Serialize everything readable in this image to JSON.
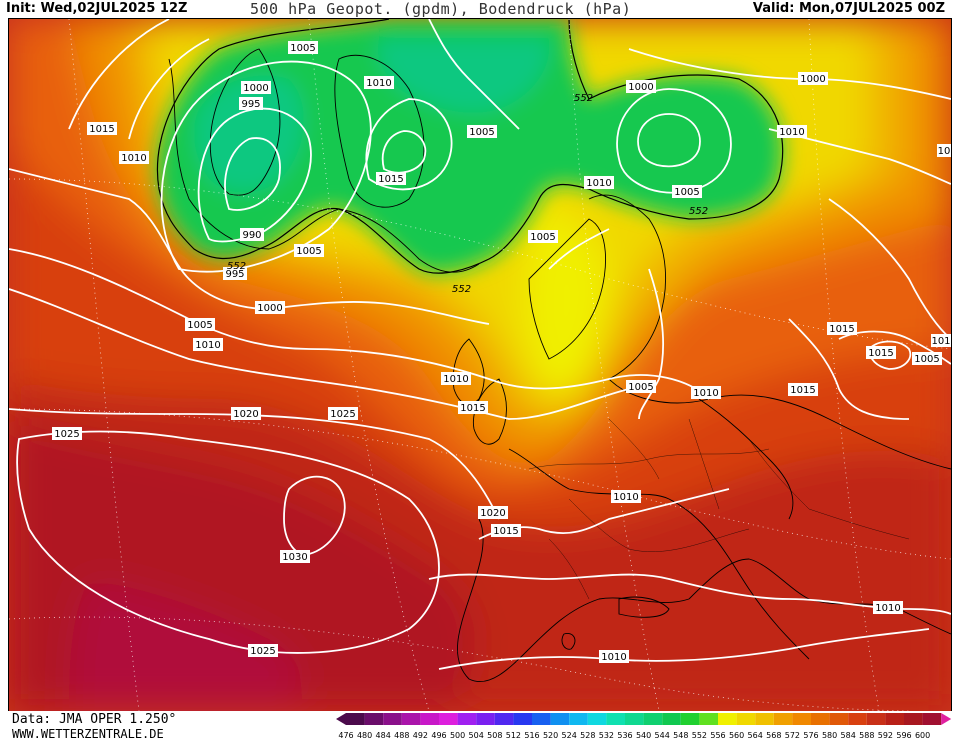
{
  "header": {
    "init": "Init: Wed,02JUL2025 12Z",
    "title": "500 hPa Geopot. (gpdm), Bodendruck (hPa)",
    "valid": "Valid: Mon,07JUL2025 00Z"
  },
  "footer": {
    "data_source": "Data: JMA OPER 1.250°",
    "url": "WWW.WETTERZENTRALE.DE"
  },
  "legend": {
    "values": [
      "476",
      "480",
      "484",
      "488",
      "492",
      "496",
      "500",
      "504",
      "508",
      "512",
      "516",
      "520",
      "524",
      "528",
      "532",
      "536",
      "540",
      "544",
      "548",
      "552",
      "556",
      "560",
      "564",
      "568",
      "572",
      "576",
      "580",
      "584",
      "588",
      "592",
      "596",
      "600"
    ],
    "colors": [
      "#4b0a4b",
      "#6a0d6a",
      "#8a108a",
      "#aa14aa",
      "#c818c8",
      "#dd1fdd",
      "#a020f0",
      "#7a20f0",
      "#5028f0",
      "#2838f0",
      "#1860f0",
      "#1090f0",
      "#10b8f0",
      "#10d8e0",
      "#10e0b0",
      "#10d890",
      "#10d070",
      "#10c850",
      "#20d030",
      "#60e020",
      "#f0f000",
      "#f0d800",
      "#f0c000",
      "#f0a000",
      "#f08800",
      "#e87000",
      "#e05808",
      "#d84010",
      "#c83018",
      "#b82018",
      "#a81820",
      "#a01030"
    ]
  },
  "pressure_labels": [
    {
      "text": "1005"
    },
    {
      "text": "1000"
    },
    {
      "text": "995"
    },
    {
      "text": "1010"
    },
    {
      "text": "1015"
    },
    {
      "text": "1005"
    },
    {
      "text": "1015"
    },
    {
      "text": "990"
    },
    {
      "text": "995"
    },
    {
      "text": "1005"
    },
    {
      "text": "1000"
    },
    {
      "text": "1005"
    },
    {
      "text": "1010"
    },
    {
      "text": "1010"
    },
    {
      "text": "1000"
    },
    {
      "text": "1010"
    },
    {
      "text": "1005"
    },
    {
      "text": "1000"
    },
    {
      "text": "1010"
    },
    {
      "text": "1005"
    },
    {
      "text": "1010"
    },
    {
      "text": "1015"
    },
    {
      "text": "1005"
    },
    {
      "text": "1010"
    },
    {
      "text": "1015"
    },
    {
      "text": "1015"
    },
    {
      "text": "1005"
    },
    {
      "text": "1020"
    },
    {
      "text": "1025"
    },
    {
      "text": "1025"
    },
    {
      "text": "1010"
    },
    {
      "text": "1020"
    },
    {
      "text": "1015"
    },
    {
      "text": "1030"
    },
    {
      "text": "1010"
    },
    {
      "text": "1025"
    },
    {
      "text": "1010"
    },
    {
      "text": "1010"
    },
    {
      "text": "101"
    },
    {
      "text": "10"
    }
  ],
  "geopot_labels": [
    {
      "text": "552"
    },
    {
      "text": "552"
    },
    {
      "text": "552"
    },
    {
      "text": "552"
    },
    {
      "text": "552"
    }
  ]
}
